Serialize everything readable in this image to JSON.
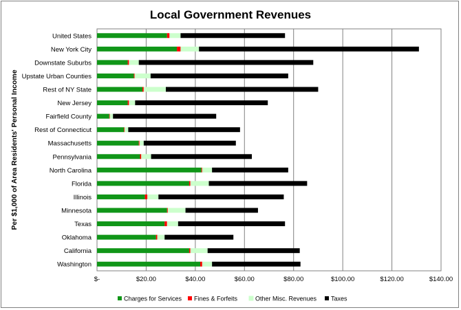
{
  "chart_data": {
    "type": "bar",
    "orientation": "horizontal",
    "stacked": true,
    "title": "Local Government Revenues",
    "ylabel": "Per $1,000 of Area Residents' Personal Income",
    "xlim": [
      0,
      140
    ],
    "x_ticks": [
      0,
      20,
      40,
      60,
      80,
      100,
      120,
      140
    ],
    "x_tick_labels": [
      "$-",
      "$20.00",
      "$40.00",
      "$60.00",
      "$80.00",
      "$100.00",
      "$120.00",
      "$140.00"
    ],
    "grid": "vertical",
    "legend": "bottom",
    "categories": [
      "United States",
      "New York City",
      "Downstate Suburbs",
      "Upstate Urban Counties",
      "Rest of NY State",
      "New Jersey",
      "Fairfield County",
      "Rest of Connecticut",
      "Massachusetts",
      "Pennsylvania",
      "North Carolina",
      "Florida",
      "Illinois",
      "Minnesota",
      "Texas",
      "Oklahoma",
      "California",
      "Washington"
    ],
    "series": [
      {
        "name": "Charges for Services",
        "color": "#109618",
        "values": [
          28.5,
          32.5,
          12.5,
          15,
          18.5,
          12.5,
          5,
          11,
          17,
          17.5,
          42.5,
          37.5,
          19.5,
          28.5,
          27.5,
          24,
          37.5,
          42
        ]
      },
      {
        "name": "Fines & Forfeits",
        "color": "#ff0000",
        "values": [
          1,
          1.5,
          0.5,
          0.3,
          0.5,
          0.5,
          0.2,
          0.2,
          0.3,
          0.5,
          0.3,
          0.5,
          1,
          0.3,
          1,
          0.5,
          0.5,
          0.8
        ]
      },
      {
        "name": "Other Misc. Revenues",
        "color": "#ccffcc",
        "values": [
          4.5,
          7.5,
          4,
          6.5,
          9,
          2.5,
          1.3,
          1.5,
          1.7,
          4,
          4,
          7.5,
          4.5,
          7.2,
          4.5,
          3,
          7,
          4
        ]
      },
      {
        "name": "Taxes",
        "color": "#000000",
        "values": [
          42.5,
          89.5,
          71,
          56,
          62,
          54,
          42,
          45.5,
          37.5,
          41,
          31,
          40,
          51,
          29.5,
          43.5,
          28,
          37.5,
          36
        ]
      }
    ]
  }
}
